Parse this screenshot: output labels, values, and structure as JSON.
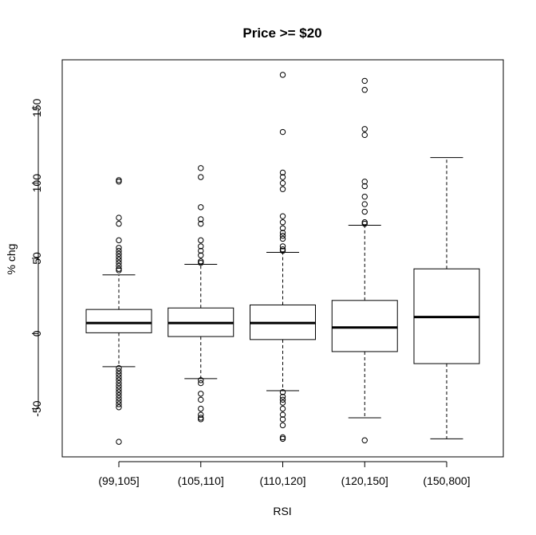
{
  "chart_data": {
    "type": "box",
    "title": "Price >= $20",
    "xlabel": "RSI",
    "ylabel": "% chg",
    "ylim": [
      -82,
      182
    ],
    "yticks": [
      -50,
      0,
      50,
      100,
      150
    ],
    "categories": [
      "(99,105]",
      "(105,110]",
      "(110,120]",
      "(120,150]",
      "(150,800]"
    ],
    "boxes": [
      {
        "category": "(99,105]",
        "whisker_low": -22,
        "q1": 0.5,
        "median": 7,
        "q3": 16,
        "whisker_high": 39,
        "outliers": [
          102,
          101,
          77,
          73,
          62,
          57,
          55,
          53,
          51,
          49,
          47,
          45,
          43,
          42,
          -23,
          -25,
          -27,
          -29,
          -31,
          -33,
          -35,
          -37,
          -39,
          -41,
          -43,
          -45,
          -47,
          -49,
          -72
        ]
      },
      {
        "category": "(105,110]",
        "whisker_low": -30,
        "q1": -2,
        "median": 7,
        "q3": 17,
        "whisker_high": 46,
        "outliers": [
          110,
          104,
          84,
          76,
          73,
          62,
          58,
          55,
          52,
          48,
          47,
          -31,
          -33,
          -40,
          -44,
          -50,
          -54,
          -56,
          -57
        ]
      },
      {
        "category": "(110,120]",
        "whisker_low": -38,
        "q1": -4,
        "median": 7,
        "q3": 19,
        "whisker_high": 54,
        "outliers": [
          172,
          134,
          107,
          104,
          100,
          96,
          78,
          74,
          70,
          67,
          65,
          63,
          58,
          56,
          55,
          -39,
          -42,
          -44,
          -46,
          -50,
          -54,
          -57,
          -61,
          -69,
          -70
        ]
      },
      {
        "category": "(120,150]",
        "whisker_low": -56,
        "q1": -12,
        "median": 4,
        "q3": 22,
        "whisker_high": 72,
        "outliers": [
          168,
          162,
          136,
          132,
          101,
          98,
          91,
          86,
          81,
          74,
          73,
          -71
        ]
      },
      {
        "category": "(150,800]",
        "whisker_low": -70,
        "q1": -20,
        "median": 11,
        "q3": 43,
        "whisker_high": 117,
        "outliers": []
      }
    ],
    "grid": false,
    "legend": "none"
  }
}
